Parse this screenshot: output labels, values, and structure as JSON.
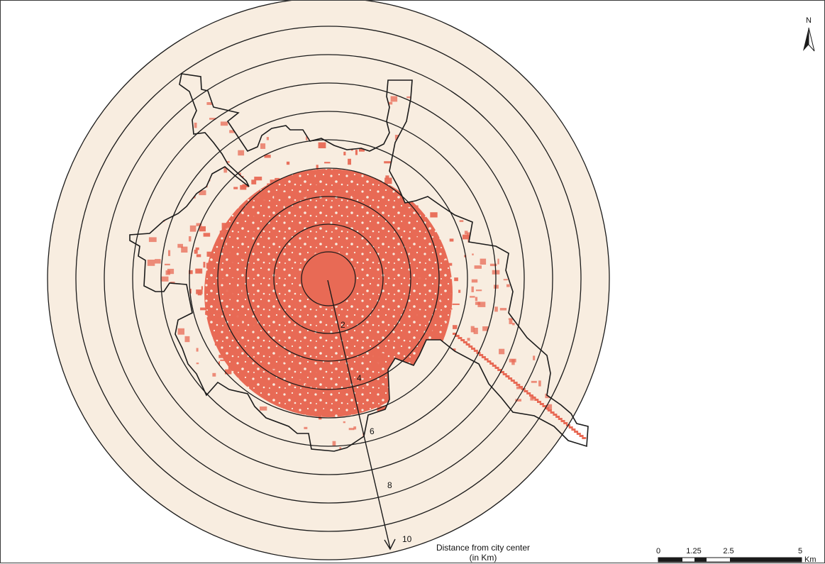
{
  "map": {
    "north_label": "N",
    "distance_caption_line1": "Distance from city center",
    "distance_caption_line2": "(in Km)",
    "ring_labels": [
      "2",
      "4",
      "6",
      "8",
      "10"
    ],
    "scale_bar": {
      "ticks": [
        "0",
        "1.25",
        "2.5",
        "5"
      ],
      "unit": "Km"
    },
    "colors": {
      "background_rings": "#f8ede0",
      "built_up": "#e86a55",
      "boundary": "#1a1a1a",
      "ring_stroke": "#1a1a1a"
    }
  }
}
